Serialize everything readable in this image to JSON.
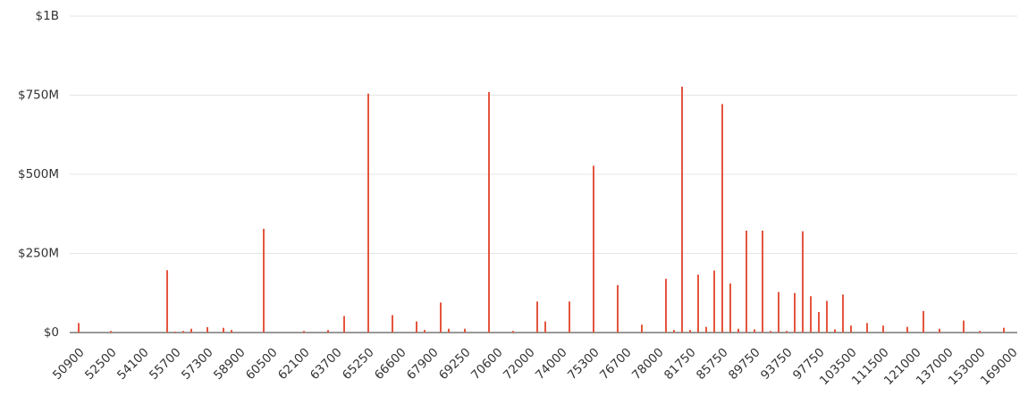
{
  "chart_data": {
    "type": "bar",
    "color": "#e4553e",
    "grid": true,
    "ylim": [
      0,
      1000000000
    ],
    "yticks": [
      {
        "value": 0,
        "label": "$0"
      },
      {
        "value": 250000000,
        "label": "$250M"
      },
      {
        "value": 500000000,
        "label": "$500M"
      },
      {
        "value": 750000000,
        "label": "$750M"
      },
      {
        "value": 1000000000,
        "label": "$1B"
      }
    ],
    "categories": [
      "50900",
      null,
      null,
      null,
      "52500",
      null,
      null,
      null,
      "54100",
      null,
      null,
      null,
      "55700",
      null,
      null,
      null,
      "57300",
      null,
      null,
      null,
      "58900",
      null,
      null,
      null,
      "60500",
      null,
      null,
      null,
      "62100",
      null,
      null,
      null,
      "63700",
      null,
      null,
      null,
      "65250",
      null,
      null,
      null,
      "66600",
      null,
      null,
      null,
      "67900",
      null,
      null,
      null,
      "69250",
      null,
      null,
      null,
      "70600",
      null,
      null,
      null,
      "72000",
      null,
      null,
      null,
      "74000",
      null,
      null,
      null,
      "75300",
      null,
      null,
      null,
      "76700",
      null,
      null,
      null,
      "78000",
      null,
      null,
      null,
      "81750",
      null,
      null,
      null,
      "85750",
      null,
      null,
      null,
      "89750",
      null,
      null,
      null,
      "93750",
      null,
      null,
      null,
      "97750",
      null,
      null,
      null,
      "103500",
      null,
      null,
      null,
      "111500",
      null,
      null,
      null,
      "121000",
      null,
      null,
      null,
      "137000",
      null,
      null,
      null,
      "153000",
      null,
      null,
      null,
      "169000"
    ],
    "values": [
      30000000,
      0,
      0,
      0,
      5000000,
      0,
      0,
      0,
      0,
      0,
      0,
      197000000,
      3000000,
      5000000,
      12000000,
      0,
      17000000,
      0,
      15000000,
      8000000,
      0,
      0,
      0,
      328000000,
      0,
      0,
      0,
      0,
      5000000,
      0,
      0,
      8000000,
      0,
      52000000,
      0,
      0,
      755000000,
      0,
      0,
      55000000,
      0,
      0,
      35000000,
      8000000,
      0,
      95000000,
      12000000,
      0,
      12000000,
      0,
      0,
      760000000,
      0,
      0,
      5000000,
      0,
      0,
      98000000,
      35000000,
      0,
      0,
      98000000,
      0,
      0,
      527000000,
      0,
      0,
      150000000,
      0,
      0,
      25000000,
      0,
      0,
      170000000,
      8000000,
      777000000,
      8000000,
      183000000,
      18000000,
      196000000,
      722000000,
      155000000,
      12000000,
      322000000,
      10000000,
      322000000,
      5000000,
      128000000,
      5000000,
      125000000,
      320000000,
      115000000,
      65000000,
      100000000,
      10000000,
      120000000,
      22000000,
      0,
      30000000,
      0,
      22000000,
      0,
      0,
      18000000,
      0,
      68000000,
      0,
      12000000,
      0,
      0,
      38000000,
      0,
      5000000,
      0,
      0,
      15000000,
      0
    ]
  }
}
